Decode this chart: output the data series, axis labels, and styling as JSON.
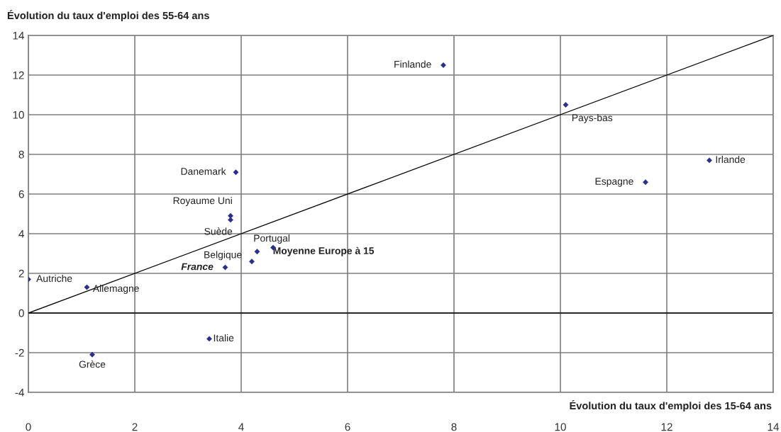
{
  "chart_data": {
    "type": "scatter",
    "ylabel": "Évolution du taux d'emploi des 55-64 ans",
    "xlabel": "Évolution du taux d'emploi des 15-64 ans",
    "xlim": [
      0,
      14
    ],
    "ylim": [
      -4,
      14
    ],
    "xticks": [
      0,
      2,
      4,
      6,
      8,
      10,
      12,
      14
    ],
    "yticks": [
      -4,
      -2,
      0,
      2,
      4,
      6,
      8,
      10,
      12,
      14
    ],
    "grid": true,
    "series": [
      {
        "marker": "diamond",
        "color": "#2b2f8f",
        "x": [
          3.9,
          3.8,
          3.8,
          4.6,
          4.3,
          4.2,
          3.7,
          0,
          1.1,
          1.2,
          3.4,
          7.8,
          10.1,
          11.6,
          12.8
        ],
        "values": [
          7.1,
          4.9,
          4.7,
          3.3,
          3.1,
          2.6,
          2.3,
          1.7,
          1.3,
          -2.1,
          -1.3,
          12.5,
          10.5,
          6.6,
          7.7
        ]
      },
      {
        "type": "line",
        "color": "#000000",
        "x": [
          0,
          14
        ],
        "values": [
          0,
          14
        ]
      }
    ],
    "annotations": [
      {
        "text": "Danemark",
        "x": 3.9,
        "y": 7.1
      },
      {
        "text": "Royaume Uni",
        "x": 3.8,
        "y": 4.9
      },
      {
        "text": "Suède",
        "x": 3.8,
        "y": 4.7
      },
      {
        "text": "Portugal",
        "x": 4.6,
        "y": 3.3
      },
      {
        "text": "Moyenne Europe à 15",
        "x": 4.3,
        "y": 3.1
      },
      {
        "text": "Belgique",
        "x": 4.2,
        "y": 2.6
      },
      {
        "text": "France",
        "x": 3.7,
        "y": 2.3
      },
      {
        "text": "Autriche",
        "x": 0,
        "y": 1.7
      },
      {
        "text": "Allemagne",
        "x": 1.1,
        "y": 1.3
      },
      {
        "text": "Grèce",
        "x": 1.2,
        "y": -2.1
      },
      {
        "text": "Italie",
        "x": 3.4,
        "y": -1.3
      },
      {
        "text": "Finlande",
        "x": 7.8,
        "y": 12.5
      },
      {
        "text": "Pays-bas",
        "x": 10.1,
        "y": 10.5
      },
      {
        "text": "Espagne",
        "x": 11.6,
        "y": 6.6
      },
      {
        "text": "Irlande",
        "x": 12.8,
        "y": 7.7
      }
    ]
  }
}
